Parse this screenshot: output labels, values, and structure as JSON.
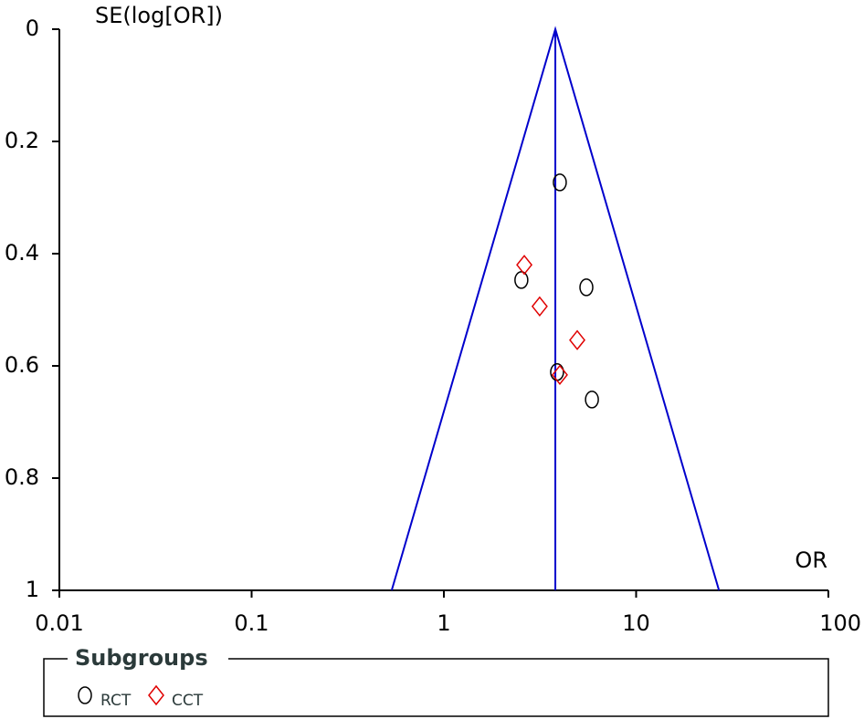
{
  "chart_data": {
    "type": "funnel",
    "y_label": "SE(log[OR])",
    "x_label": "OR",
    "x_log": true,
    "y_reversed": true,
    "xlim": [
      0.01,
      100
    ],
    "xticks": [
      0.01,
      0.1,
      1,
      10,
      100
    ],
    "ylim": [
      0,
      1
    ],
    "yticks": [
      0,
      0.2,
      0.4,
      0.6,
      0.8,
      1
    ],
    "summary": 3.8,
    "funnel_color": "#0000cc",
    "legend_title": "Subgroups",
    "series": [
      {
        "name": "RCT",
        "marker": "circle",
        "color": "#000000",
        "x": [
          4.01,
          2.53,
          5.51,
          3.88,
          5.89
        ],
        "y": [
          0.273,
          0.447,
          0.46,
          0.611,
          0.66
        ]
      },
      {
        "name": "CCT",
        "marker": "diamond",
        "color": "#e00000",
        "x": [
          2.62,
          3.15,
          4.94,
          4.01
        ],
        "y": [
          0.42,
          0.494,
          0.554,
          0.616
        ]
      }
    ]
  }
}
